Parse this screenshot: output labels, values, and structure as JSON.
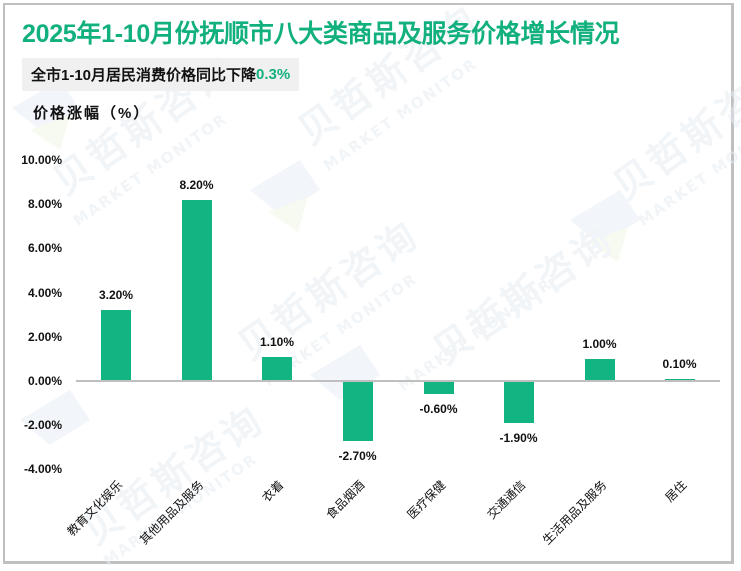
{
  "header": {
    "title": "2025年1-10月份抚顺市八大类商品及服务价格增长情况",
    "subtitle_prefix": "全市1-10月居民消费价格同比下降",
    "subtitle_highlight": "0.3%",
    "y_axis_label": "价格涨幅（%）"
  },
  "watermark": {
    "cn": "贝哲斯咨询",
    "en": "MARKET MONITOR"
  },
  "colors": {
    "title": "#12b07e",
    "bar": "#12b482",
    "axis": "#bfbfbf",
    "subtitle_bg": "#f0f0f0"
  },
  "y_ticks": [
    "10.00%",
    "8.00%",
    "6.00%",
    "4.00%",
    "2.00%",
    "0.00%",
    "-2.00%",
    "-4.00%"
  ],
  "bars": [
    {
      "category": "教育文化娱乐",
      "value": 3.2,
      "label": "3.20%"
    },
    {
      "category": "其他用品及服务",
      "value": 8.2,
      "label": "8.20%"
    },
    {
      "category": "衣着",
      "value": 1.1,
      "label": "1.10%"
    },
    {
      "category": "食品烟酒",
      "value": -2.7,
      "label": "-2.70%"
    },
    {
      "category": "医疗保健",
      "value": -0.6,
      "label": "-0.60%"
    },
    {
      "category": "交通通信",
      "value": -1.9,
      "label": "-1.90%"
    },
    {
      "category": "生活用品及服务",
      "value": 1.0,
      "label": "1.00%"
    },
    {
      "category": "居住",
      "value": 0.1,
      "label": "0.10%"
    }
  ],
  "chart_data": {
    "type": "bar",
    "title": "2025年1-10月份抚顺市八大类商品及服务价格增长情况",
    "subtitle": "全市1-10月居民消费价格同比下降0.3%",
    "categories": [
      "教育文化娱乐",
      "其他用品及服务",
      "衣着",
      "食品烟酒",
      "医疗保健",
      "交通通信",
      "生活用品及服务",
      "居住"
    ],
    "values": [
      3.2,
      8.2,
      1.1,
      -2.7,
      -0.6,
      -1.9,
      1.0,
      0.1
    ],
    "data_labels": [
      "3.20%",
      "8.20%",
      "1.10%",
      "-2.70%",
      "-0.60%",
      "-1.90%",
      "1.00%",
      "0.10%"
    ],
    "xlabel": "",
    "ylabel": "价格涨幅（%）",
    "ylim": [
      -4,
      10
    ],
    "y_tick_labels": [
      "-4.00%",
      "-2.00%",
      "0.00%",
      "2.00%",
      "4.00%",
      "6.00%",
      "8.00%",
      "10.00%"
    ],
    "grid": false,
    "legend": null
  }
}
